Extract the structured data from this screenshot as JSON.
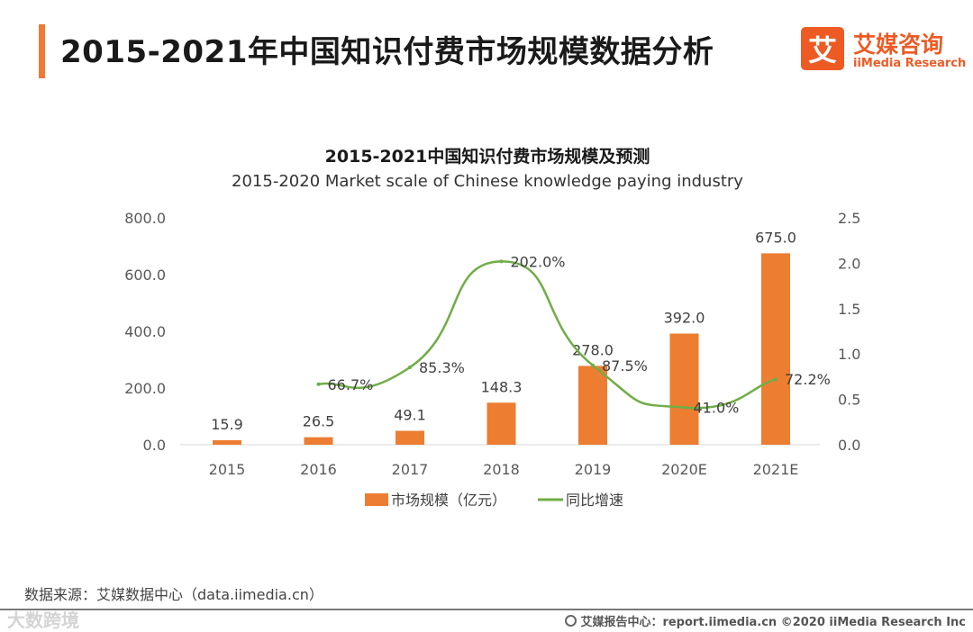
{
  "page": {
    "title": "2015-2021年中国知识付费市场规模数据分析",
    "accent_color": "#ee7a33"
  },
  "logo": {
    "icon_char": "艾",
    "cn": "艾媒咨询",
    "en": "iiMedia Research",
    "color": "#ee5a24"
  },
  "chart_data": {
    "type": "bar",
    "title": "2015-2021中国知识付费市场规模及预测",
    "subtitle": "2015-2020 Market scale of Chinese knowledge paying industry",
    "categories": [
      "2015",
      "2016",
      "2017",
      "2018",
      "2019",
      "2020E",
      "2021E"
    ],
    "series": [
      {
        "name": "市场规模（亿元）",
        "type": "bar",
        "axis": "left",
        "color": "#ed7d31",
        "values": [
          15.9,
          26.5,
          49.1,
          148.3,
          278.0,
          392.0,
          675.0
        ],
        "labels": [
          "15.9",
          "26.5",
          "49.1",
          "148.3",
          "278.0",
          "392.0",
          "675.0"
        ]
      },
      {
        "name": "同比增速",
        "type": "line",
        "axis": "right",
        "smooth": true,
        "color": "#70ad47",
        "values": [
          null,
          0.667,
          0.853,
          2.02,
          0.875,
          0.41,
          0.722
        ],
        "labels": [
          "",
          "66.7%",
          "85.3%",
          "202.0%",
          "87.5%",
          "41.0%",
          "72.2%"
        ]
      }
    ],
    "left_axis": {
      "min": 0,
      "max": 800,
      "ticks": [
        "0.0",
        "200.0",
        "400.0",
        "600.0",
        "800.0"
      ]
    },
    "right_axis": {
      "min": 0,
      "max": 2.5,
      "ticks": [
        "0.0",
        "0.5",
        "1.0",
        "1.5",
        "2.0",
        "2.5"
      ]
    },
    "grid": false,
    "legend_position": "bottom"
  },
  "source": "数据来源：艾媒数据中心（data.iimedia.cn）",
  "footer": {
    "watermark": "大数跨境",
    "note": "艾媒报告中心：report.iimedia.cn  ©2020  iiMedia Research  Inc"
  }
}
